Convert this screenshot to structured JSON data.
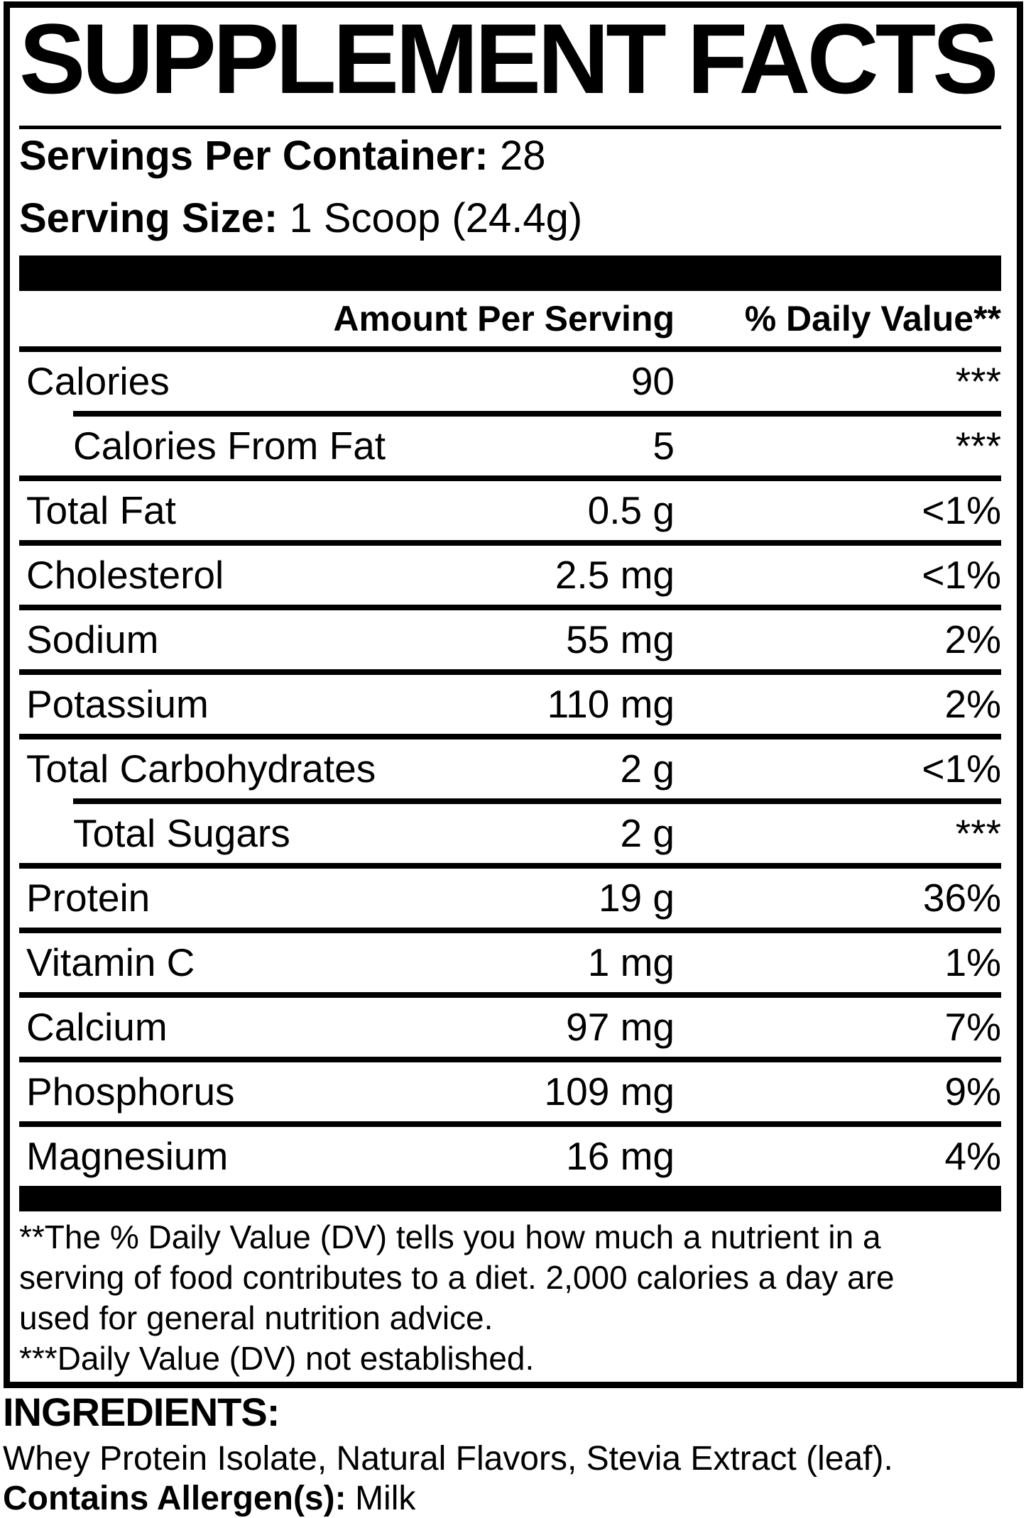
{
  "title": "SUPPLEMENT FACTS",
  "serving_info": {
    "servings_label": "Servings Per Container:",
    "servings_value": "28",
    "size_label": "Serving Size:",
    "size_value": "1 Scoop (24.4g)"
  },
  "table": {
    "header": {
      "amount": "Amount Per Serving",
      "dv": "% Daily Value**"
    },
    "rows": [
      {
        "label": "Calories",
        "amount": "90",
        "dv": "***"
      },
      {
        "label": "Calories From Fat",
        "amount": "5",
        "dv": "***"
      },
      {
        "label": "Total Fat",
        "amount": "0.5 g",
        "dv": "<1%"
      },
      {
        "label": "Cholesterol",
        "amount": "2.5 mg",
        "dv": "<1%"
      },
      {
        "label": "Sodium",
        "amount": "55 mg",
        "dv": "2%"
      },
      {
        "label": "Potassium",
        "amount": "110 mg",
        "dv": "2%"
      },
      {
        "label": "Total Carbohydrates",
        "amount": "2 g",
        "dv": "<1%"
      },
      {
        "label": "Total Sugars",
        "amount": "2 g",
        "dv": "***"
      },
      {
        "label": "Protein",
        "amount": "19 g",
        "dv": "36%"
      },
      {
        "label": "Vitamin C",
        "amount": "1 mg",
        "dv": "1%"
      },
      {
        "label": "Calcium",
        "amount": "97 mg",
        "dv": "7%"
      },
      {
        "label": "Phosphorus",
        "amount": "109 mg",
        "dv": "9%"
      },
      {
        "label": "Magnesium",
        "amount": "16 mg",
        "dv": "4%"
      }
    ]
  },
  "footnotes": {
    "lines": [
      "**The % Daily Value (DV) tells you how much a nutrient in a",
      "serving of food contributes to a diet. 2,000 calories a day are",
      "used for general nutrition advice.",
      "***Daily Value (DV) not established."
    ]
  },
  "ingredients": {
    "heading": "INGREDIENTS:",
    "list": "Whey Protein Isolate, Natural Flavors, Stevia Extract (leaf).",
    "allergen_label": "Contains Allergen(s):",
    "allergen_value": "Milk"
  },
  "colors": {
    "text": "#000000",
    "background": "#ffffff"
  }
}
